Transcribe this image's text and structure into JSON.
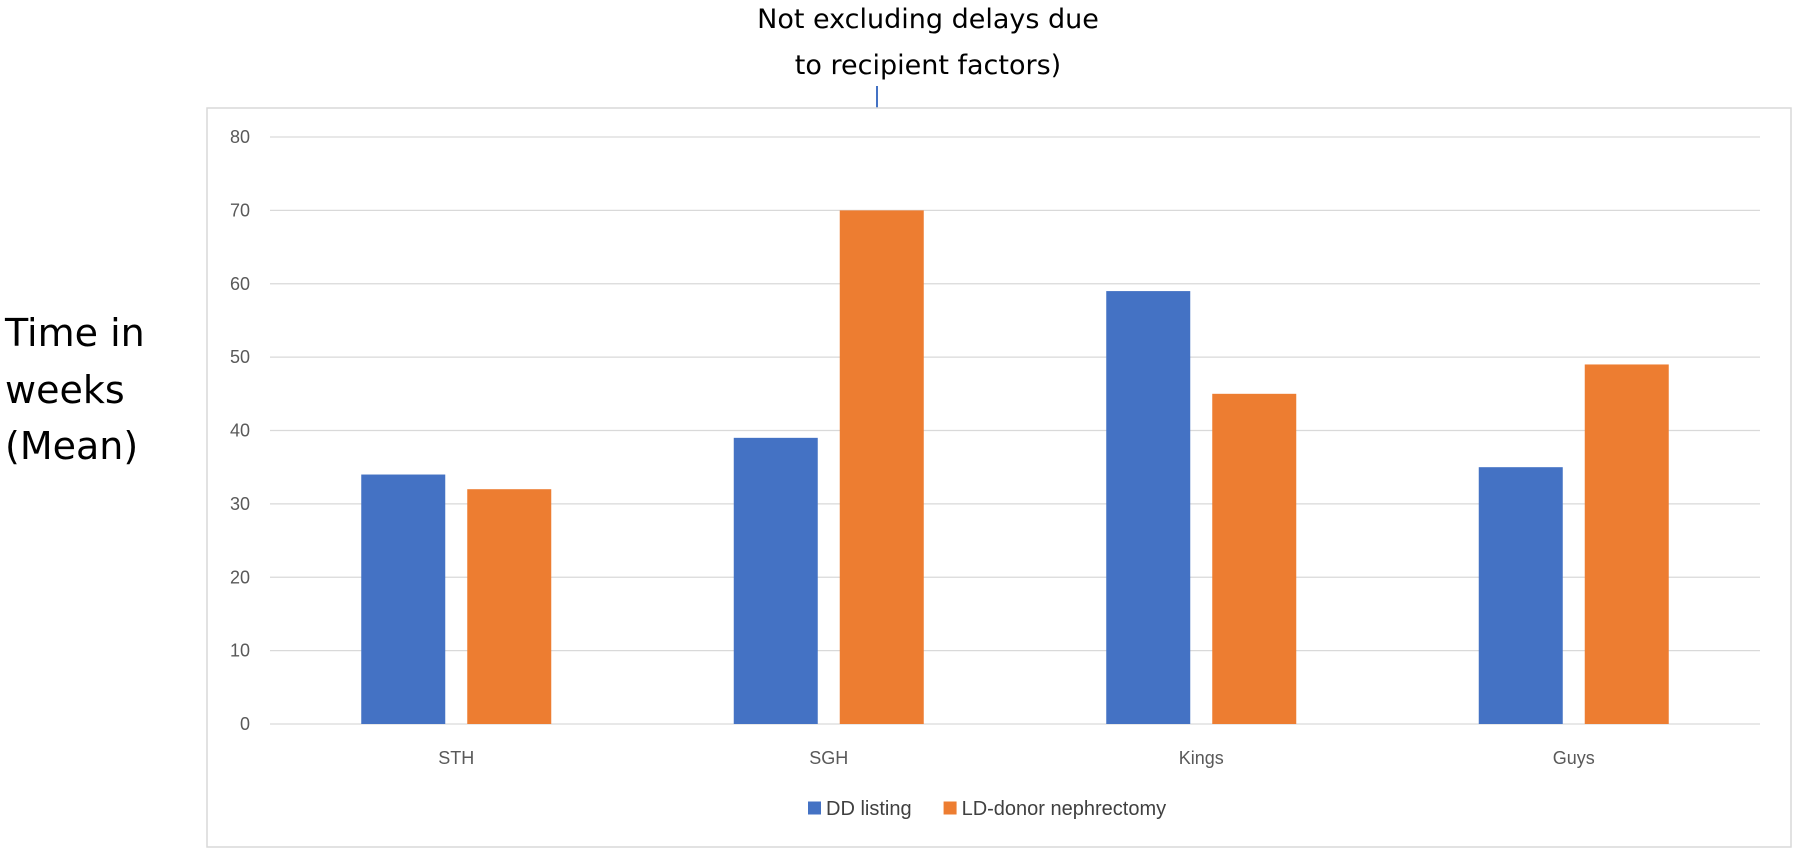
{
  "chart_data": {
    "type": "bar",
    "categories": [
      "STH",
      "SGH",
      "Kings",
      "Guys"
    ],
    "series": [
      {
        "name": "DD listing",
        "color": "#4472c4",
        "values": [
          34,
          39,
          59,
          35
        ]
      },
      {
        "name": "LD-donor nephrectomy",
        "color": "#ed7d31",
        "values": [
          32,
          70,
          45,
          49
        ]
      }
    ],
    "ylabel_lines": [
      "Time in",
      "weeks",
      "(Mean)"
    ],
    "ylim": [
      0,
      80
    ],
    "yticks": [
      0,
      10,
      20,
      30,
      40,
      50,
      60,
      70,
      80
    ],
    "grid": true,
    "legend_position": "bottom",
    "annotation": {
      "lines": [
        "Not excluding delays due",
        "to recipient factors)"
      ],
      "points_to_category": "SGH",
      "arrow_color": "#4472c4"
    }
  }
}
